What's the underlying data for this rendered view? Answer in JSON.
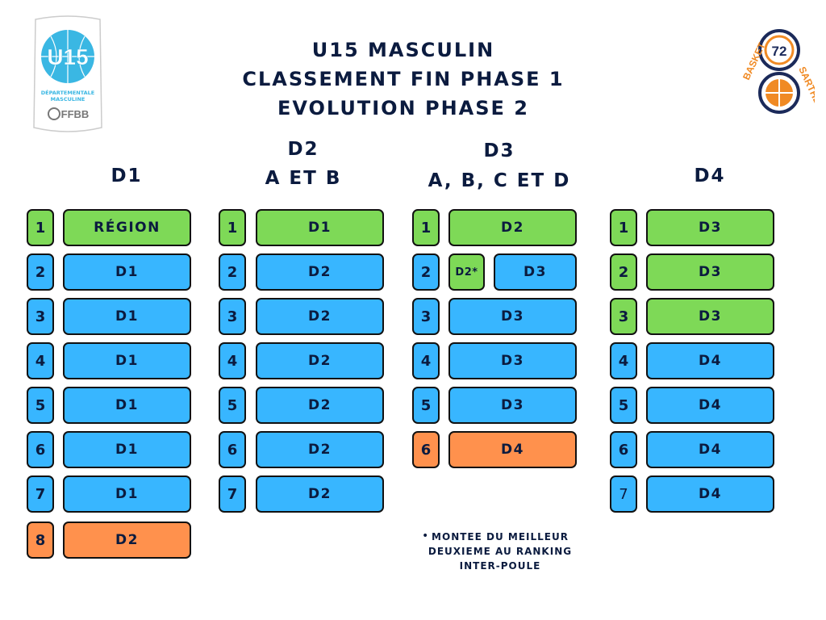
{
  "title": [
    "U15 MASCULIN",
    "CLASSEMENT FIN PHASE 1",
    "EVOLUTION PHASE 2"
  ],
  "logos": {
    "left": {
      "text": "U15",
      "sub1": "DÉPARTEMENTALE",
      "sub2": "MASCULINE",
      "brand": "FFBB"
    },
    "right": {
      "left_text": "BASKET",
      "right_text": "SARTHE",
      "number": "72"
    }
  },
  "colors": {
    "green": "#7ed957",
    "blue": "#38b6ff",
    "orange": "#ff914d"
  },
  "columns": [
    {
      "header": [
        "D1"
      ],
      "rows": [
        {
          "rank": "1",
          "dest": "RÉGION",
          "color": "green"
        },
        {
          "rank": "2",
          "dest": "D1",
          "color": "blue"
        },
        {
          "rank": "3",
          "dest": "D1",
          "color": "blue"
        },
        {
          "rank": "4",
          "dest": "D1",
          "color": "blue"
        },
        {
          "rank": "5",
          "dest": "D1",
          "color": "blue"
        },
        {
          "rank": "6",
          "dest": "D1",
          "color": "blue"
        },
        {
          "rank": "7",
          "dest": "D1",
          "color": "blue"
        },
        {
          "rank": "8",
          "dest": "D2",
          "color": "orange"
        }
      ]
    },
    {
      "header": [
        "D2",
        "A ET B"
      ],
      "rows": [
        {
          "rank": "1",
          "dest": "D1",
          "color": "green"
        },
        {
          "rank": "2",
          "dest": "D2",
          "color": "blue"
        },
        {
          "rank": "3",
          "dest": "D2",
          "color": "blue"
        },
        {
          "rank": "4",
          "dest": "D2",
          "color": "blue"
        },
        {
          "rank": "5",
          "dest": "D2",
          "color": "blue"
        },
        {
          "rank": "6",
          "dest": "D2",
          "color": "blue"
        },
        {
          "rank": "7",
          "dest": "D2",
          "color": "blue"
        }
      ]
    },
    {
      "header": [
        "D3",
        "A, B, C ET D"
      ],
      "rows": [
        {
          "rank": "1",
          "dest": "D2",
          "color": "green"
        },
        {
          "rank": "2",
          "dest": "D3",
          "color": "blue",
          "extra": "D2*"
        },
        {
          "rank": "3",
          "dest": "D3",
          "color": "blue"
        },
        {
          "rank": "4",
          "dest": "D3",
          "color": "blue"
        },
        {
          "rank": "5",
          "dest": "D3",
          "color": "blue"
        },
        {
          "rank": "6",
          "dest": "D4",
          "color": "orange"
        }
      ]
    },
    {
      "header": [
        "D4"
      ],
      "rows": [
        {
          "rank": "1",
          "dest": "D3",
          "color": "green"
        },
        {
          "rank": "2",
          "dest": "D3",
          "color": "green"
        },
        {
          "rank": "3",
          "dest": "D3",
          "color": "green"
        },
        {
          "rank": "4",
          "dest": "D4",
          "color": "blue"
        },
        {
          "rank": "5",
          "dest": "D4",
          "color": "blue"
        },
        {
          "rank": "6",
          "dest": "D4",
          "color": "blue"
        },
        {
          "rank": "7",
          "dest": "D4",
          "color": "blue"
        }
      ]
    }
  ],
  "footnote": "MONTEE DU MEILLEUR DEUXIEME AU RANKING INTER-POULE"
}
